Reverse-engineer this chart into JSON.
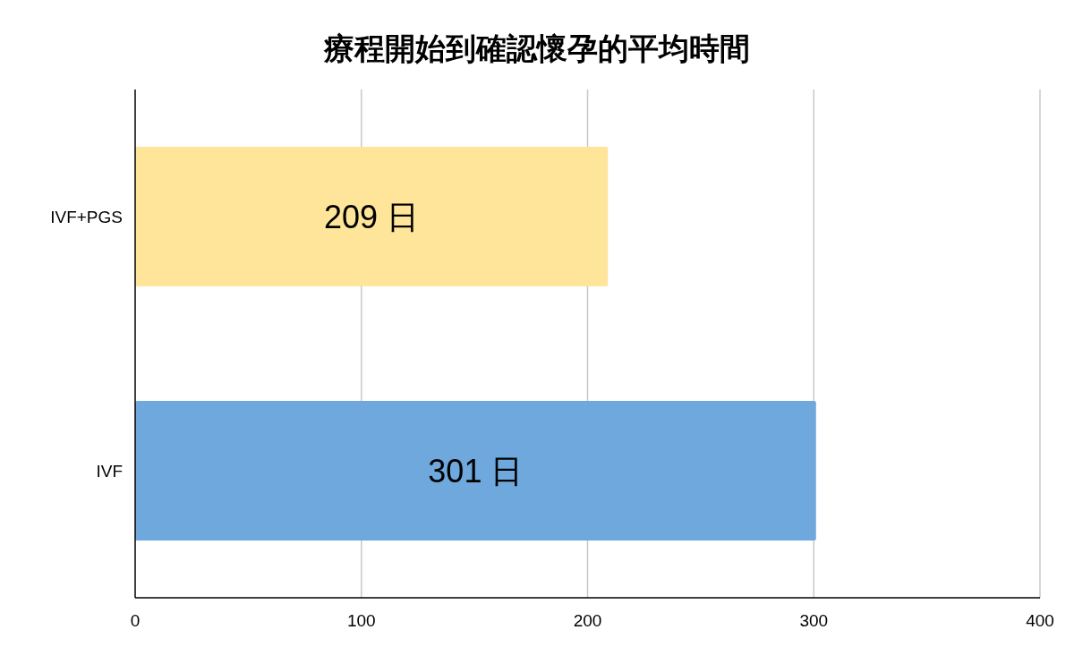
{
  "chart_data": {
    "type": "bar",
    "orientation": "horizontal",
    "title": "療程開始到確認懷孕的平均時間",
    "categories": [
      "IVF+PGS",
      "IVF"
    ],
    "values": [
      209,
      301
    ],
    "colors": [
      "#fee599",
      "#6fa8dc"
    ],
    "value_labels": [
      "209 日",
      "301 日"
    ],
    "xlim": [
      0,
      400
    ],
    "xticks": [
      0,
      100,
      200,
      300,
      400
    ],
    "grid": "x"
  }
}
